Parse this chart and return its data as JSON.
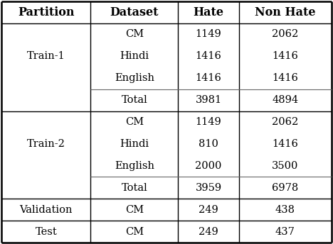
{
  "headers": [
    "Partition",
    "Dataset",
    "Hate",
    "Non Hate"
  ],
  "train1": [
    [
      "CM",
      "1149",
      "2062"
    ],
    [
      "Hindi",
      "1416",
      "1416"
    ],
    [
      "English",
      "1416",
      "1416"
    ],
    [
      "Total",
      "3981",
      "4894"
    ]
  ],
  "train2": [
    [
      "CM",
      "1149",
      "2062"
    ],
    [
      "Hindi",
      "810",
      "1416"
    ],
    [
      "English",
      "2000",
      "3500"
    ],
    [
      "Total",
      "3959",
      "6978"
    ]
  ],
  "validation": [
    "CM",
    "249",
    "438"
  ],
  "test": [
    "CM",
    "249",
    "437"
  ],
  "font_size": 10.5,
  "header_font_size": 11.5,
  "col_bounds": [
    0.0,
    0.27,
    0.535,
    0.72,
    1.0
  ],
  "n_subrows_train": 4,
  "line_color": "#000000",
  "bg_color": "#ffffff"
}
